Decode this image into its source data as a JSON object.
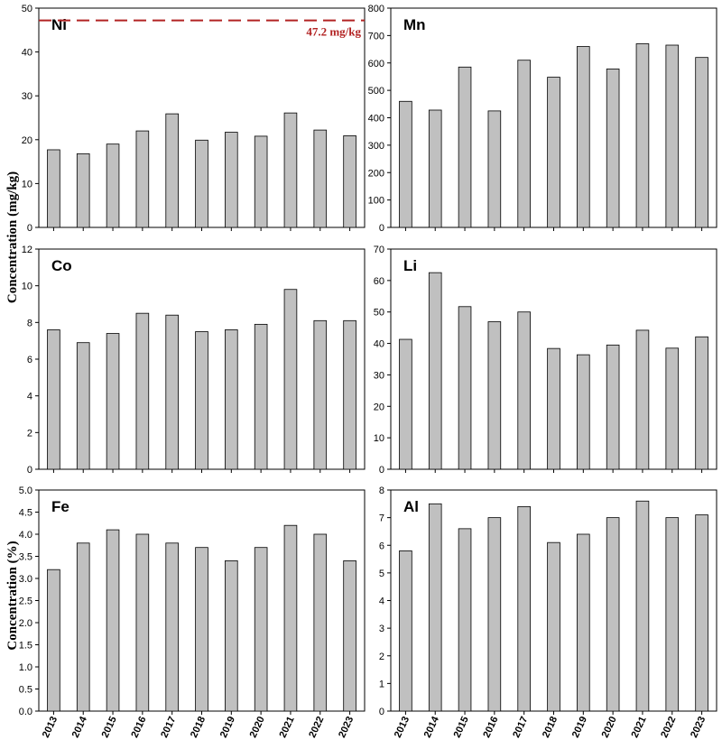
{
  "figure": {
    "ylabel_top": "Concentration (mg/kg)",
    "ylabel_bottom": "Concentration (%)"
  },
  "chart_data": [
    {
      "type": "bar",
      "panel": "Ni",
      "categories": [
        "2013",
        "2014",
        "2015",
        "2016",
        "2017",
        "2018",
        "2019",
        "2020",
        "2021",
        "2022",
        "2023"
      ],
      "values": [
        17.7,
        16.8,
        19.0,
        22.0,
        25.9,
        19.9,
        21.7,
        20.8,
        26.1,
        22.2,
        20.9
      ],
      "ylim": [
        0,
        50
      ],
      "yticks": [
        0,
        10,
        20,
        30,
        40,
        50
      ],
      "reference_line": {
        "value": 47.2,
        "label": "47.2 mg/kg",
        "color": "#b22222"
      }
    },
    {
      "type": "bar",
      "panel": "Mn",
      "categories": [
        "2013",
        "2014",
        "2015",
        "2016",
        "2017",
        "2018",
        "2019",
        "2020",
        "2021",
        "2022",
        "2023"
      ],
      "values": [
        460,
        428,
        585,
        425,
        610,
        548,
        660,
        578,
        670,
        665,
        620
      ],
      "ylim": [
        0,
        800
      ],
      "yticks": [
        0,
        100,
        200,
        300,
        400,
        500,
        600,
        700,
        800
      ]
    },
    {
      "type": "bar",
      "panel": "Co",
      "categories": [
        "2013",
        "2014",
        "2015",
        "2016",
        "2017",
        "2018",
        "2019",
        "2020",
        "2021",
        "2022",
        "2023"
      ],
      "values": [
        7.6,
        6.9,
        7.4,
        8.5,
        8.4,
        7.5,
        7.6,
        7.9,
        9.8,
        8.1,
        8.1
      ],
      "ylim": [
        0,
        12
      ],
      "yticks": [
        0,
        2,
        4,
        6,
        8,
        10,
        12
      ]
    },
    {
      "type": "bar",
      "panel": "Li",
      "categories": [
        "2013",
        "2014",
        "2015",
        "2016",
        "2017",
        "2018",
        "2019",
        "2020",
        "2021",
        "2022",
        "2023"
      ],
      "values": [
        41.3,
        62.5,
        51.7,
        46.9,
        50.0,
        38.4,
        36.4,
        39.5,
        44.2,
        38.5,
        42.1
      ],
      "ylim": [
        0,
        70
      ],
      "yticks": [
        0,
        10,
        20,
        30,
        40,
        50,
        60,
        70
      ]
    },
    {
      "type": "bar",
      "panel": "Fe",
      "categories": [
        "2013",
        "2014",
        "2015",
        "2016",
        "2017",
        "2018",
        "2019",
        "2020",
        "2021",
        "2022",
        "2023"
      ],
      "values": [
        3.2,
        3.8,
        4.1,
        4.0,
        3.8,
        3.7,
        3.4,
        3.7,
        4.2,
        4.0,
        3.4
      ],
      "ylim": [
        0,
        5
      ],
      "yticks": [
        "0.0",
        "0.5",
        "1.0",
        "1.5",
        "2.0",
        "2.5",
        "3.0",
        "3.5",
        "4.0",
        "4.5",
        "5.0"
      ]
    },
    {
      "type": "bar",
      "panel": "Al",
      "categories": [
        "2013",
        "2014",
        "2015",
        "2016",
        "2017",
        "2018",
        "2019",
        "2020",
        "2021",
        "2022",
        "2023"
      ],
      "values": [
        5.8,
        7.5,
        6.6,
        7.0,
        7.4,
        6.1,
        6.4,
        7.0,
        7.6,
        7.0,
        7.1
      ],
      "ylim": [
        0,
        8
      ],
      "yticks": [
        0,
        1,
        2,
        3,
        4,
        5,
        6,
        7,
        8
      ]
    }
  ]
}
